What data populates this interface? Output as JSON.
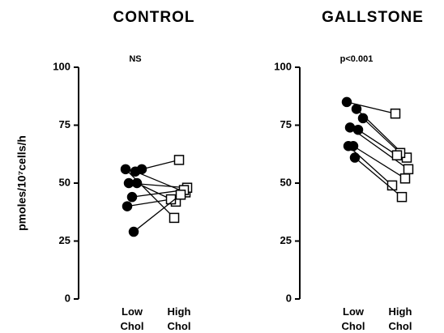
{
  "chart_data": [
    {
      "type": "paired",
      "title": "CONTROL",
      "annotation": "NS",
      "ylabel": "pmoles/10⁷cells/h",
      "categories": [
        "Low Chol",
        "High Chol"
      ],
      "markers": [
        "circle-filled",
        "square-open"
      ],
      "color": "#000000",
      "ylim": [
        0,
        100
      ],
      "yticks": [
        0,
        25,
        50,
        75,
        100
      ],
      "series": [
        {
          "values": [
            56,
            35
          ]
        },
        {
          "values": [
            55,
            46
          ]
        },
        {
          "values": [
            56,
            60
          ]
        },
        {
          "values": [
            50,
            48
          ]
        },
        {
          "values": [
            50,
            42
          ]
        },
        {
          "values": [
            44,
            47
          ]
        },
        {
          "values": [
            40,
            43
          ]
        },
        {
          "values": [
            29,
            45
          ]
        }
      ]
    },
    {
      "type": "paired",
      "title": "GALLSTONE",
      "annotation": "p<0.001",
      "categories": [
        "Low Chol",
        "High Chol"
      ],
      "markers": [
        "circle-filled",
        "square-open"
      ],
      "color": "#000000",
      "ylim": [
        0,
        100
      ],
      "yticks": [
        0,
        25,
        50,
        75,
        100
      ],
      "series": [
        {
          "values": [
            85,
            80
          ]
        },
        {
          "values": [
            82,
            61
          ]
        },
        {
          "values": [
            78,
            63
          ]
        },
        {
          "values": [
            74,
            56
          ]
        },
        {
          "values": [
            73,
            62
          ]
        },
        {
          "values": [
            66,
            52
          ]
        },
        {
          "values": [
            66,
            49
          ]
        },
        {
          "values": [
            61,
            44
          ]
        }
      ]
    }
  ]
}
